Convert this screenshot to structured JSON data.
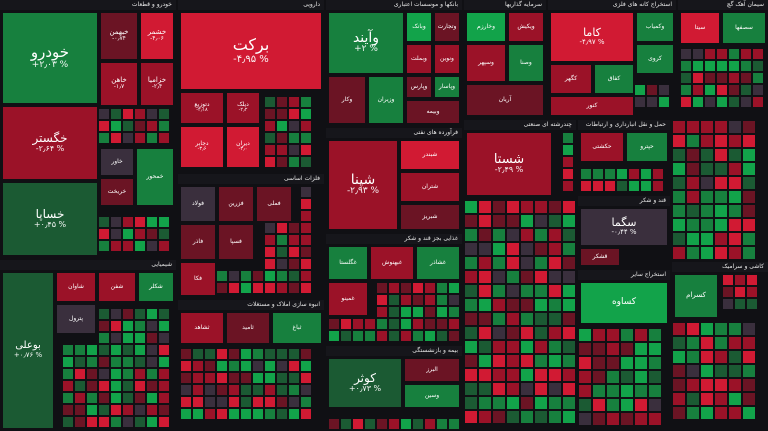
{
  "chart_data": {
    "type": "treemap",
    "title": "",
    "colors": {
      "strong_up": "#12a34a",
      "up": "#17803e",
      "mild_up": "#1b5a33",
      "flat": "#3a2f3d",
      "mild_down": "#6b1424",
      "down": "#9b1228",
      "strong_down": "#d11a33",
      "background": "#101014"
    },
    "sectors": [
      {
        "name": "خودرو و قطعات",
        "tiles": [
          {
            "name": "خودرو",
            "change": "+۲٫۰۳ %",
            "value": 2.03
          },
          {
            "name": "خگستر",
            "change": "-۲٫۶۴ %",
            "value": -2.64
          },
          {
            "name": "خساپا",
            "change": "+۰٫۴۵ %",
            "value": 0.45
          },
          {
            "name": "خبهمن",
            "change": "-۰٫۷۴",
            "value": -0.74
          },
          {
            "name": "خشمر",
            "change": "-۴٫۰۶",
            "value": -4.06
          },
          {
            "name": "خاهن",
            "change": "-۱٫۷",
            "value": -1.7
          },
          {
            "name": "خزامیا",
            "change": "-۲٫۴",
            "value": -2.4
          },
          {
            "name": "خاور",
            "change": "",
            "value": -0.5
          },
          {
            "name": "خریخت",
            "change": "",
            "value": -1.2
          },
          {
            "name": "خمحور",
            "change": "",
            "value": 1.5
          }
        ]
      },
      {
        "name": "دارویی",
        "tiles": [
          {
            "name": "برکت",
            "change": "-۴٫۹۵ %",
            "value": -4.95
          },
          {
            "name": "دتوزیع",
            "change": "-۲٫۱۸",
            "value": -2.18
          },
          {
            "name": "دیلک",
            "change": "-۲٫۲",
            "value": -2.2
          },
          {
            "name": "دجابر",
            "change": "-۳٫۶",
            "value": -3.6
          },
          {
            "name": "دیران",
            "change": "-۳٫۰",
            "value": -3.0
          }
        ]
      },
      {
        "name": "بانکها و موسسات اعتباری",
        "tiles": [
          {
            "name": "وآیند",
            "change": "+۲ %",
            "value": 2.0
          },
          {
            "name": "وبانک",
            "change": "",
            "value": 3.0
          },
          {
            "name": "وتجارت",
            "change": "",
            "value": -1.5
          },
          {
            "name": "وبملت",
            "change": "",
            "value": -2.0
          },
          {
            "name": "ونوین",
            "change": "",
            "value": -1.8
          },
          {
            "name": "وپارس",
            "change": "",
            "value": -1.0
          },
          {
            "name": "وپاسار",
            "change": "",
            "value": 1.2
          },
          {
            "name": "وکار",
            "change": "",
            "value": -0.6
          },
          {
            "name": "وزیران",
            "change": "",
            "value": 1.6
          },
          {
            "name": "وبیمه",
            "change": "",
            "value": -1.1
          }
        ]
      },
      {
        "name": "سرمایه گذاریها",
        "tiles": [
          {
            "name": "وخارزم",
            "change": "",
            "value": 2.8
          },
          {
            "name": "ویکیش",
            "change": "",
            "value": -2.9
          },
          {
            "name": "وسپهر",
            "change": "",
            "value": -1.8
          },
          {
            "name": "وصنا",
            "change": "",
            "value": 2.4
          },
          {
            "name": "آریان",
            "change": "",
            "value": -1.5
          }
        ]
      },
      {
        "name": "استخراج کانه های فلزی",
        "tiles": [
          {
            "name": "کاما",
            "change": "-۴٫۹۷ %",
            "value": -4.97
          },
          {
            "name": "وکمیاب",
            "change": "",
            "value": 1.8
          },
          {
            "name": "کروی",
            "change": "",
            "value": 2.1
          },
          {
            "name": "کگهر",
            "change": "",
            "value": -1.9
          },
          {
            "name": "کفاق",
            "change": "",
            "value": 1.7
          },
          {
            "name": "کنور",
            "change": "",
            "value": -2.3
          }
        ]
      },
      {
        "name": "سیمان آهک گچ",
        "tiles": [
          {
            "name": "سیتا",
            "change": "",
            "value": -4.0
          },
          {
            "name": "سصفها",
            "change": "",
            "value": 2.2
          }
        ]
      },
      {
        "name": "فرآورده های نفتی",
        "tiles": [
          {
            "name": "شپنا",
            "change": "-۲٫۹۳ %",
            "value": -2.93
          },
          {
            "name": "شبندر",
            "change": "",
            "value": -3.1
          },
          {
            "name": "شتران",
            "change": "",
            "value": -2.6
          },
          {
            "name": "شبریز",
            "change": "",
            "value": -1.0
          }
        ]
      },
      {
        "name": "چندرشته ای صنعتی",
        "tiles": [
          {
            "name": "شستا",
            "change": "-۲٫۴۹ %",
            "value": -2.49
          }
        ]
      },
      {
        "name": "حمل و نقل انبارداری و ارتباطات",
        "tiles": [
          {
            "name": "حکشتی",
            "change": "",
            "value": -2.2
          },
          {
            "name": "حپترو",
            "change": "",
            "value": 1.4
          }
        ]
      },
      {
        "name": "فلزات اساسی",
        "tiles": [
          {
            "name": "فولاد",
            "change": "",
            "value": -0.4
          },
          {
            "name": "فزرین",
            "change": "",
            "value": -1.1
          },
          {
            "name": "فملی",
            "change": "",
            "value": -0.9
          },
          {
            "name": "فاذر",
            "change": "",
            "value": -0.7
          },
          {
            "name": "فسپا",
            "change": "",
            "value": -1.4
          },
          {
            "name": "فکا",
            "change": "",
            "value": -2.1
          }
        ]
      },
      {
        "name": "شیمیایی",
        "tiles": [
          {
            "name": "بوعلی",
            "change": "+۰٫۷۶ %",
            "value": 0.76
          },
          {
            "name": "شاوان",
            "change": "",
            "value": -2.0
          },
          {
            "name": "شفن",
            "change": "",
            "value": -1.7
          },
          {
            "name": "شکلر",
            "change": "",
            "value": 1.8
          },
          {
            "name": "پترول",
            "change": "",
            "value": -0.3
          }
        ]
      },
      {
        "name": "غذایی بجز قند و شکر",
        "tiles": [
          {
            "name": "غگلستا",
            "change": "",
            "value": 1.7
          },
          {
            "name": "غبهنوش",
            "change": "",
            "value": -2.3
          },
          {
            "name": "غمینو",
            "change": "",
            "value": -1.8
          },
          {
            "name": "غشاذر",
            "change": "",
            "value": 1.4
          }
        ]
      },
      {
        "name": "انبوه سازی املاک و مستغلات",
        "tiles": [
          {
            "name": "ثشاهد",
            "change": "",
            "value": -2.0
          },
          {
            "name": "ثامید",
            "change": "",
            "value": -0.9
          },
          {
            "name": "ثباغ",
            "change": "",
            "value": 1.2
          }
        ]
      },
      {
        "name": "بیمه و بازنشستگی",
        "tiles": [
          {
            "name": "کوثر",
            "change": "+۰٫۷۳ %",
            "value": 0.73
          },
          {
            "name": "البرز",
            "change": "",
            "value": -1.2
          },
          {
            "name": "وسین",
            "change": "",
            "value": 1.6
          }
        ]
      },
      {
        "name": "قند و شکر",
        "tiles": [
          {
            "name": "سگما",
            "change": "-۰٫۴۴ %",
            "value": -0.44
          },
          {
            "name": "قشکر",
            "change": "",
            "value": -1.3
          }
        ]
      },
      {
        "name": "استخراج سایر",
        "tiles": [
          {
            "name": "کساوه",
            "change": "",
            "value": 2.6
          }
        ]
      },
      {
        "name": "کاشی و سرامیک",
        "tiles": [
          {
            "name": "کسرام",
            "change": "",
            "value": 1.6
          }
        ]
      }
    ]
  }
}
